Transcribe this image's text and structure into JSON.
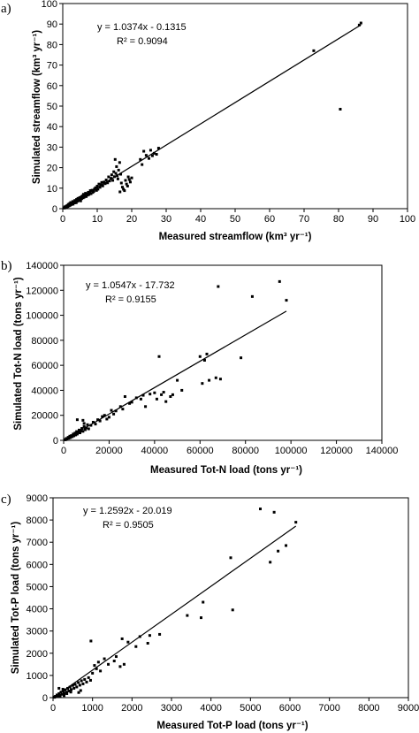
{
  "chart_data": [
    {
      "type": "scatter",
      "panel_label": "a)",
      "title": "",
      "xlabel": "Measured streamflow (km³ yr⁻¹)",
      "ylabel": "Simulated streamflow (km³ yr⁻¹)",
      "xlim": [
        0,
        100
      ],
      "ylim": [
        0,
        100
      ],
      "xticks": [
        "0",
        "10",
        "20",
        "30",
        "40",
        "50",
        "60",
        "70",
        "80",
        "90",
        "100"
      ],
      "yticks": [
        "0",
        "10",
        "20",
        "30",
        "40",
        "50",
        "60",
        "70",
        "80",
        "90",
        "100"
      ],
      "grid": false,
      "equation": "y = 1.0374x - 0.1315",
      "r2": "R² = 0.9094",
      "trendline": {
        "slope": 1.0374,
        "intercept": -0.1315,
        "x_range": [
          0,
          86.5
        ]
      },
      "points": [
        [
          0.3,
          0.4
        ],
        [
          0.5,
          0.3
        ],
        [
          0.6,
          0.9
        ],
        [
          0.8,
          0.5
        ],
        [
          1.0,
          1.2
        ],
        [
          1.1,
          0.7
        ],
        [
          1.3,
          1.5
        ],
        [
          1.5,
          1.0
        ],
        [
          1.6,
          2.1
        ],
        [
          1.8,
          1.4
        ],
        [
          2.0,
          2.5
        ],
        [
          2.1,
          1.6
        ],
        [
          2.3,
          3.0
        ],
        [
          2.5,
          2.0
        ],
        [
          2.7,
          2.6
        ],
        [
          2.9,
          3.5
        ],
        [
          3.0,
          2.2
        ],
        [
          3.2,
          3.1
        ],
        [
          3.4,
          2.8
        ],
        [
          3.5,
          4.0
        ],
        [
          3.7,
          3.3
        ],
        [
          3.9,
          2.9
        ],
        [
          4.0,
          4.5
        ],
        [
          4.2,
          3.6
        ],
        [
          4.4,
          5.0
        ],
        [
          4.5,
          3.9
        ],
        [
          4.7,
          4.2
        ],
        [
          4.9,
          5.4
        ],
        [
          5.0,
          4.6
        ],
        [
          5.2,
          3.8
        ],
        [
          5.4,
          5.8
        ],
        [
          5.5,
          4.9
        ],
        [
          5.7,
          6.2
        ],
        [
          5.9,
          5.3
        ],
        [
          6.0,
          7.0
        ],
        [
          6.2,
          5.6
        ],
        [
          6.4,
          6.4
        ],
        [
          6.6,
          7.5
        ],
        [
          6.8,
          5.9
        ],
        [
          7.0,
          7.2
        ],
        [
          7.2,
          6.6
        ],
        [
          7.4,
          8.0
        ],
        [
          7.6,
          6.9
        ],
        [
          7.8,
          7.6
        ],
        [
          8.0,
          8.8
        ],
        [
          8.2,
          7.3
        ],
        [
          8.5,
          9.0
        ],
        [
          8.7,
          7.9
        ],
        [
          9.0,
          8.4
        ],
        [
          9.2,
          9.6
        ],
        [
          9.5,
          10.2
        ],
        [
          9.8,
          8.9
        ],
        [
          10.0,
          11.0
        ],
        [
          10.2,
          9.5
        ],
        [
          10.5,
          12.0
        ],
        [
          10.8,
          10.4
        ],
        [
          11.0,
          11.6
        ],
        [
          11.3,
          12.8
        ],
        [
          11.6,
          11.1
        ],
        [
          12.0,
          13.0
        ],
        [
          12.3,
          12.2
        ],
        [
          12.6,
          14.0
        ],
        [
          13.0,
          12.6
        ],
        [
          13.3,
          15.5
        ],
        [
          13.6,
          13.5
        ],
        [
          14.0,
          14.8
        ],
        [
          14.2,
          16.5
        ],
        [
          14.5,
          13.8
        ],
        [
          14.8,
          18.0
        ],
        [
          15.0,
          15.6
        ],
        [
          15.2,
          24.0
        ],
        [
          15.4,
          17.2
        ],
        [
          15.6,
          20.5
        ],
        [
          15.8,
          16.0
        ],
        [
          16.0,
          14.5
        ],
        [
          16.2,
          18.8
        ],
        [
          16.5,
          22.5
        ],
        [
          16.8,
          16.8
        ],
        [
          17.0,
          12.5
        ],
        [
          17.3,
          10.5
        ],
        [
          17.6,
          9.5
        ],
        [
          17.9,
          8.8
        ],
        [
          18.2,
          13.8
        ],
        [
          18.5,
          12.0
        ],
        [
          18.8,
          11.0
        ],
        [
          19.0,
          15.5
        ],
        [
          19.3,
          14.2
        ],
        [
          19.6,
          13.0
        ],
        [
          20.0,
          15.0
        ],
        [
          16.6,
          8.2
        ],
        [
          22.5,
          24.0
        ],
        [
          23.0,
          21.5
        ],
        [
          23.5,
          28.0
        ],
        [
          24.2,
          26.0
        ],
        [
          25.0,
          24.5
        ],
        [
          25.5,
          28.5
        ],
        [
          26.0,
          25.8
        ],
        [
          26.5,
          27.0
        ],
        [
          27.2,
          26.5
        ],
        [
          27.8,
          29.5
        ],
        [
          72.8,
          77.0
        ],
        [
          80.5,
          48.5
        ],
        [
          86.0,
          89.5
        ],
        [
          86.5,
          90.5
        ]
      ]
    },
    {
      "type": "scatter",
      "panel_label": "b)",
      "title": "",
      "xlabel": "Measured Tot-N load (tons yr⁻¹)",
      "ylabel": "Simulated Tot-N load (tons yr⁻¹)",
      "xlim": [
        0,
        140000
      ],
      "ylim": [
        0,
        140000
      ],
      "xticks": [
        "0",
        "20000",
        "40000",
        "60000",
        "80000",
        "100000",
        "120000",
        "140000"
      ],
      "yticks": [
        "0",
        "20000",
        "40000",
        "60000",
        "80000",
        "100000",
        "120000",
        "140000"
      ],
      "grid": false,
      "equation": "y = 1.0547x - 17.732",
      "r2": "R² = 0.9155",
      "trendline": {
        "slope": 1.0547,
        "intercept": -17.732,
        "x_range": [
          0,
          98000
        ]
      },
      "points": [
        [
          500,
          700
        ],
        [
          800,
          400
        ],
        [
          1200,
          1500
        ],
        [
          1500,
          900
        ],
        [
          2000,
          2400
        ],
        [
          2300,
          1700
        ],
        [
          2700,
          3300
        ],
        [
          3000,
          2200
        ],
        [
          3400,
          3800
        ],
        [
          3800,
          2900
        ],
        [
          4200,
          5000
        ],
        [
          4500,
          3600
        ],
        [
          5000,
          5800
        ],
        [
          5300,
          4300
        ],
        [
          5700,
          7000
        ],
        [
          6000,
          5000
        ],
        [
          6400,
          6500
        ],
        [
          6800,
          8200
        ],
        [
          7200,
          6000
        ],
        [
          7600,
          7500
        ],
        [
          8000,
          9500
        ],
        [
          8500,
          7200
        ],
        [
          9000,
          11000
        ],
        [
          9500,
          8500
        ],
        [
          10000,
          10000
        ],
        [
          10500,
          12500
        ],
        [
          11000,
          9200
        ],
        [
          6000,
          16500
        ],
        [
          8500,
          16000
        ],
        [
          9000,
          13500
        ],
        [
          12000,
          12000
        ],
        [
          13000,
          14500
        ],
        [
          14000,
          13000
        ],
        [
          15000,
          16500
        ],
        [
          16000,
          15500
        ],
        [
          17000,
          19000
        ],
        [
          18000,
          20000
        ],
        [
          19000,
          17000
        ],
        [
          20000,
          18500
        ],
        [
          21000,
          24000
        ],
        [
          22000,
          21000
        ],
        [
          23000,
          23500
        ],
        [
          25000,
          27000
        ],
        [
          26000,
          25000
        ],
        [
          27000,
          35000
        ],
        [
          29000,
          29500
        ],
        [
          30000,
          30500
        ],
        [
          32000,
          34000
        ],
        [
          34000,
          33000
        ],
        [
          35000,
          36000
        ],
        [
          36000,
          27000
        ],
        [
          38000,
          37000
        ],
        [
          40000,
          38000
        ],
        [
          41000,
          33000
        ],
        [
          42000,
          67000
        ],
        [
          43000,
          36500
        ],
        [
          44000,
          38500
        ],
        [
          45000,
          31000
        ],
        [
          47000,
          35000
        ],
        [
          48000,
          36500
        ],
        [
          50000,
          48000
        ],
        [
          52000,
          40000
        ],
        [
          60000,
          67000
        ],
        [
          61000,
          45500
        ],
        [
          62000,
          64000
        ],
        [
          63000,
          69000
        ],
        [
          64000,
          48000
        ],
        [
          67000,
          50000
        ],
        [
          68000,
          123000
        ],
        [
          69000,
          49000
        ],
        [
          78000,
          66000
        ],
        [
          83000,
          115000
        ],
        [
          95000,
          127000
        ],
        [
          98000,
          112000
        ]
      ]
    },
    {
      "type": "scatter",
      "panel_label": "c)",
      "title": "",
      "xlabel": "Measured Tot-P load (tons yr⁻¹)",
      "ylabel": "Simulated Tot-P load (tons yr⁻¹)",
      "xlim": [
        0,
        9000
      ],
      "ylim": [
        0,
        9000
      ],
      "xticks": [
        "0",
        "1000",
        "2000",
        "3000",
        "4000",
        "5000",
        "6000",
        "7000",
        "8000",
        "9000"
      ],
      "yticks": [
        "0",
        "1000",
        "2000",
        "3000",
        "4000",
        "5000",
        "6000",
        "7000",
        "8000",
        "9000"
      ],
      "grid": false,
      "equation": "y = 1.2592x - 20.019",
      "r2": "R² = 0.9505",
      "trendline": {
        "slope": 1.2592,
        "intercept": -20.019,
        "x_range": [
          0,
          6150
        ]
      },
      "points": [
        [
          20,
          30
        ],
        [
          40,
          15
        ],
        [
          60,
          60
        ],
        [
          80,
          40
        ],
        [
          100,
          120
        ],
        [
          120,
          80
        ],
        [
          150,
          180
        ],
        [
          170,
          110
        ],
        [
          200,
          250
        ],
        [
          230,
          150
        ],
        [
          260,
          300
        ],
        [
          280,
          190
        ],
        [
          310,
          350
        ],
        [
          340,
          240
        ],
        [
          370,
          420
        ],
        [
          400,
          300
        ],
        [
          430,
          480
        ],
        [
          460,
          360
        ],
        [
          500,
          550
        ],
        [
          530,
          420
        ],
        [
          560,
          600
        ],
        [
          600,
          480
        ],
        [
          640,
          680
        ],
        [
          680,
          560
        ],
        [
          720,
          760
        ],
        [
          760,
          620
        ],
        [
          800,
          820
        ],
        [
          850,
          700
        ],
        [
          900,
          900
        ],
        [
          950,
          780
        ],
        [
          150,
          420
        ],
        [
          250,
          380
        ],
        [
          350,
          180
        ],
        [
          450,
          250
        ],
        [
          650,
          230
        ],
        [
          700,
          320
        ],
        [
          180,
          60
        ],
        [
          280,
          90
        ],
        [
          960,
          2550
        ],
        [
          1000,
          1100
        ],
        [
          1050,
          1450
        ],
        [
          1100,
          1300
        ],
        [
          1150,
          1600
        ],
        [
          1200,
          1200
        ],
        [
          1300,
          1750
        ],
        [
          1400,
          1500
        ],
        [
          1550,
          1650
        ],
        [
          1600,
          1850
        ],
        [
          1700,
          1400
        ],
        [
          1750,
          2650
        ],
        [
          1800,
          1500
        ],
        [
          1900,
          2500
        ],
        [
          2100,
          2300
        ],
        [
          2200,
          2750
        ],
        [
          2400,
          2450
        ],
        [
          2450,
          2800
        ],
        [
          2700,
          2850
        ],
        [
          3400,
          3700
        ],
        [
          3750,
          3600
        ],
        [
          3800,
          4300
        ],
        [
          4500,
          6300
        ],
        [
          4550,
          3950
        ],
        [
          5250,
          8500
        ],
        [
          5500,
          6100
        ],
        [
          5600,
          8350
        ],
        [
          5700,
          6600
        ],
        [
          5900,
          6850
        ],
        [
          6150,
          7900
        ]
      ]
    }
  ]
}
